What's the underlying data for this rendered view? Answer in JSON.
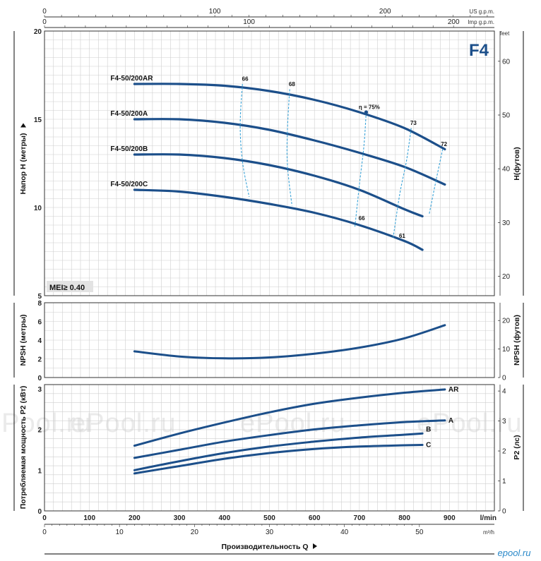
{
  "chart_data": {
    "type": "line",
    "title": "F4",
    "watermark": "ePool.ru",
    "logo": "epool.ru",
    "x_axis": {
      "label": "Производительность Q",
      "range_lmin": [
        0,
        1000
      ],
      "lmin": {
        "unit": "l/min",
        "ticks": [
          0,
          100,
          200,
          300,
          400,
          500,
          600,
          700,
          800,
          900
        ]
      },
      "m3h": {
        "unit": "m³/h",
        "ticks": [
          0,
          10,
          20,
          30,
          40,
          50
        ]
      },
      "usgpm": {
        "unit": "US g.p.m.",
        "ticks": [
          0,
          100,
          200
        ]
      },
      "impgpm": {
        "unit": "Imp g.p.m.",
        "ticks": [
          0,
          100,
          200
        ]
      }
    },
    "head_panel": {
      "ylabel": "Напор H (метры)",
      "ylabel_right": "H(футов)",
      "right_unit": "feet",
      "ylim": [
        5,
        20
      ],
      "yticks": [
        5,
        10,
        15,
        20
      ],
      "right_ticks": [
        20,
        30,
        40,
        50,
        60
      ],
      "badge": "MEI≥ 0.40",
      "series": [
        {
          "name": "F4-50/200AR",
          "x": [
            200,
            300,
            400,
            500,
            600,
            700,
            800,
            890
          ],
          "y": [
            17.0,
            17.0,
            16.9,
            16.6,
            16.1,
            15.4,
            14.5,
            13.3
          ]
        },
        {
          "name": "F4-50/200A",
          "x": [
            200,
            300,
            400,
            500,
            600,
            700,
            800,
            890
          ],
          "y": [
            15.0,
            15.0,
            14.8,
            14.4,
            13.8,
            13.1,
            12.3,
            11.3
          ]
        },
        {
          "name": "F4-50/200B",
          "x": [
            200,
            300,
            400,
            500,
            600,
            700,
            800,
            840
          ],
          "y": [
            13.0,
            13.0,
            12.8,
            12.4,
            11.8,
            11.0,
            9.9,
            9.5
          ]
        },
        {
          "name": "F4-50/200C",
          "x": [
            200,
            300,
            400,
            500,
            600,
            700,
            800,
            840
          ],
          "y": [
            11.0,
            10.9,
            10.6,
            10.2,
            9.7,
            9.0,
            8.1,
            7.6
          ]
        }
      ],
      "efficiency": [
        {
          "label": "66",
          "x": [
            440,
            435,
            440,
            455
          ],
          "y": [
            17.0,
            14.7,
            12.6,
            10.6
          ]
        },
        {
          "label": "68",
          "x": [
            545,
            540,
            540,
            550
          ],
          "y": [
            16.7,
            14.4,
            12.4,
            10.1
          ]
        },
        {
          "label": "η = 75%",
          "x": [
            715,
            710,
            700,
            690
          ],
          "y": [
            15.4,
            13.5,
            11.3,
            8.9
          ]
        },
        {
          "label": "73",
          "x": [
            815,
            805,
            790,
            775
          ],
          "y": [
            14.5,
            12.7,
            10.8,
            8.3
          ]
        },
        {
          "label": "72",
          "x": [
            885,
            870,
            855
          ],
          "y": [
            13.3,
            11.5,
            9.6
          ]
        }
      ],
      "efficiency_tags": [
        {
          "text": "66",
          "x": 446,
          "y": 17.1
        },
        {
          "text": "68",
          "x": 550,
          "y": 16.8
        },
        {
          "text": "η = 75%",
          "x": 722,
          "y": 15.5
        },
        {
          "text": "73",
          "x": 820,
          "y": 14.6
        },
        {
          "text": "72",
          "x": 888,
          "y": 13.4
        },
        {
          "text": "66",
          "x": 705,
          "y": 9.2
        },
        {
          "text": "61",
          "x": 795,
          "y": 8.2
        }
      ]
    },
    "npsh_panel": {
      "ylabel": "NPSH (метры)",
      "ylabel_right": "NPSH (футов)",
      "ylim": [
        0,
        8
      ],
      "yticks": [
        0,
        2,
        4,
        6,
        8
      ],
      "right_ticks": [
        0,
        10,
        20
      ],
      "series": [
        {
          "name": "NPSH",
          "x": [
            200,
            300,
            400,
            500,
            600,
            700,
            800,
            890
          ],
          "y": [
            2.8,
            2.25,
            2.05,
            2.15,
            2.55,
            3.2,
            4.2,
            5.6
          ]
        }
      ]
    },
    "power_panel": {
      "ylabel": "Потребляемая мощность P2 (кВт)",
      "ylabel_right": "P2 (лс)",
      "ylim": [
        0,
        3.1
      ],
      "yticks": [
        0,
        1,
        2,
        3
      ],
      "right_ticks": [
        0,
        1,
        2,
        3,
        4
      ],
      "series": [
        {
          "name": "AR",
          "x": [
            200,
            300,
            400,
            500,
            600,
            700,
            800,
            890
          ],
          "y": [
            1.6,
            1.9,
            2.17,
            2.42,
            2.63,
            2.78,
            2.9,
            2.98
          ]
        },
        {
          "name": "A",
          "x": [
            200,
            300,
            400,
            500,
            600,
            700,
            800,
            890
          ],
          "y": [
            1.3,
            1.5,
            1.7,
            1.86,
            2.0,
            2.1,
            2.18,
            2.22
          ]
        },
        {
          "name": "B",
          "x": [
            200,
            300,
            400,
            500,
            600,
            700,
            800,
            840
          ],
          "y": [
            1.0,
            1.22,
            1.42,
            1.58,
            1.7,
            1.8,
            1.87,
            1.9
          ]
        },
        {
          "name": "C",
          "x": [
            200,
            300,
            400,
            500,
            600,
            700,
            800,
            840
          ],
          "y": [
            0.92,
            1.1,
            1.28,
            1.42,
            1.52,
            1.58,
            1.61,
            1.62
          ]
        }
      ]
    },
    "colors": {
      "curve": "#1c4f8a",
      "efficiency": "#3aa3d8",
      "grid": "#cfcfcf",
      "frame": "#333333"
    }
  }
}
